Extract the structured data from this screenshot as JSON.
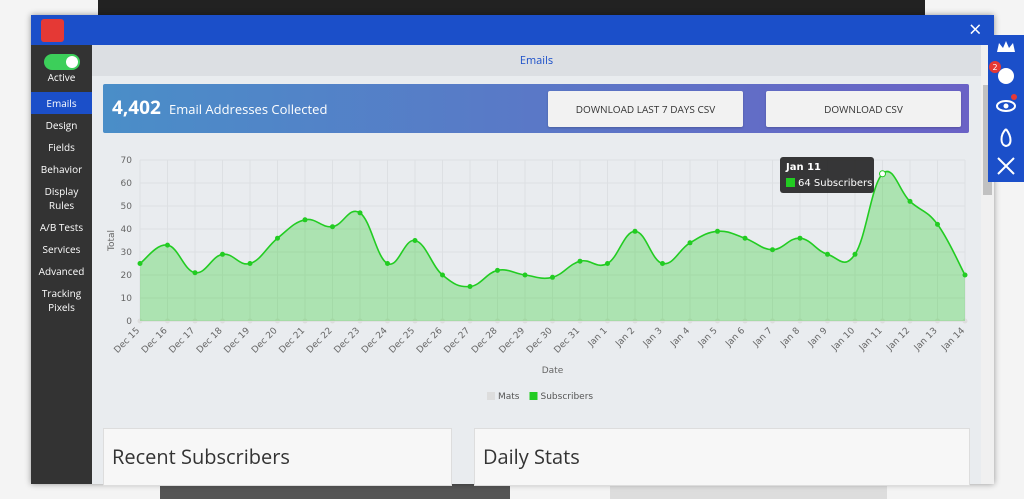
{
  "window": {
    "close": "×",
    "badge": "2"
  },
  "sidebar": {
    "toggle": "Active",
    "items": [
      "Emails",
      "Design",
      "Fields",
      "Behavior",
      "Display Rules",
      "A/B Tests",
      "Services",
      "Advanced",
      "Tracking Pixels"
    ],
    "selected": 0
  },
  "tab": "Emails",
  "banner": {
    "count": "4,402",
    "text": "Email Addresses Collected",
    "buttons": [
      "DOWNLOAD LAST 7 DAYS CSV",
      "DOWNLOAD CSV"
    ]
  },
  "chart_data": {
    "type": "line",
    "x_label": "Date",
    "y_label": "Total",
    "categories": [
      "Dec 15",
      "Dec 16",
      "Dec 17",
      "Dec 18",
      "Dec 19",
      "Dec 20",
      "Dec 21",
      "Dec 22",
      "Dec 23",
      "Dec 24",
      "Dec 25",
      "Dec 26",
      "Dec 27",
      "Dec 28",
      "Dec 29",
      "Dec 30",
      "Dec 31",
      "Jan 1",
      "Jan 2",
      "Jan 3",
      "Jan 4",
      "Jan 5",
      "Jan 6",
      "Jan 7",
      "Jan 8",
      "Jan 9",
      "Jan 10",
      "Jan 11",
      "Jan 12",
      "Jan 13",
      "Jan 14"
    ],
    "series": [
      {
        "name": "Mats",
        "color": "#dddddd",
        "values": [
          0,
          0,
          0,
          0,
          0,
          0,
          0,
          0,
          0,
          0,
          0,
          0,
          0,
          0,
          0,
          0,
          0,
          0,
          0,
          0,
          0,
          0,
          0,
          0,
          0,
          0,
          0,
          0,
          0,
          0,
          0
        ]
      },
      {
        "name": "Subscribers",
        "color": "#22cc22",
        "values": [
          25,
          33,
          21,
          29,
          25,
          36,
          44,
          41,
          47,
          25,
          35,
          20,
          15,
          22,
          20,
          19,
          26,
          25,
          39,
          25,
          34,
          39,
          36,
          31,
          36,
          29,
          29,
          64,
          52,
          42,
          20
        ]
      }
    ],
    "ylim": [
      0,
      70
    ],
    "yticks": [
      0,
      10,
      20,
      30,
      40,
      50,
      60,
      70
    ],
    "grid": true,
    "tooltip": {
      "title": "Jan 11",
      "label": "64 Subscribers"
    }
  },
  "panels": [
    "Recent Subscribers",
    "Daily Stats"
  ]
}
